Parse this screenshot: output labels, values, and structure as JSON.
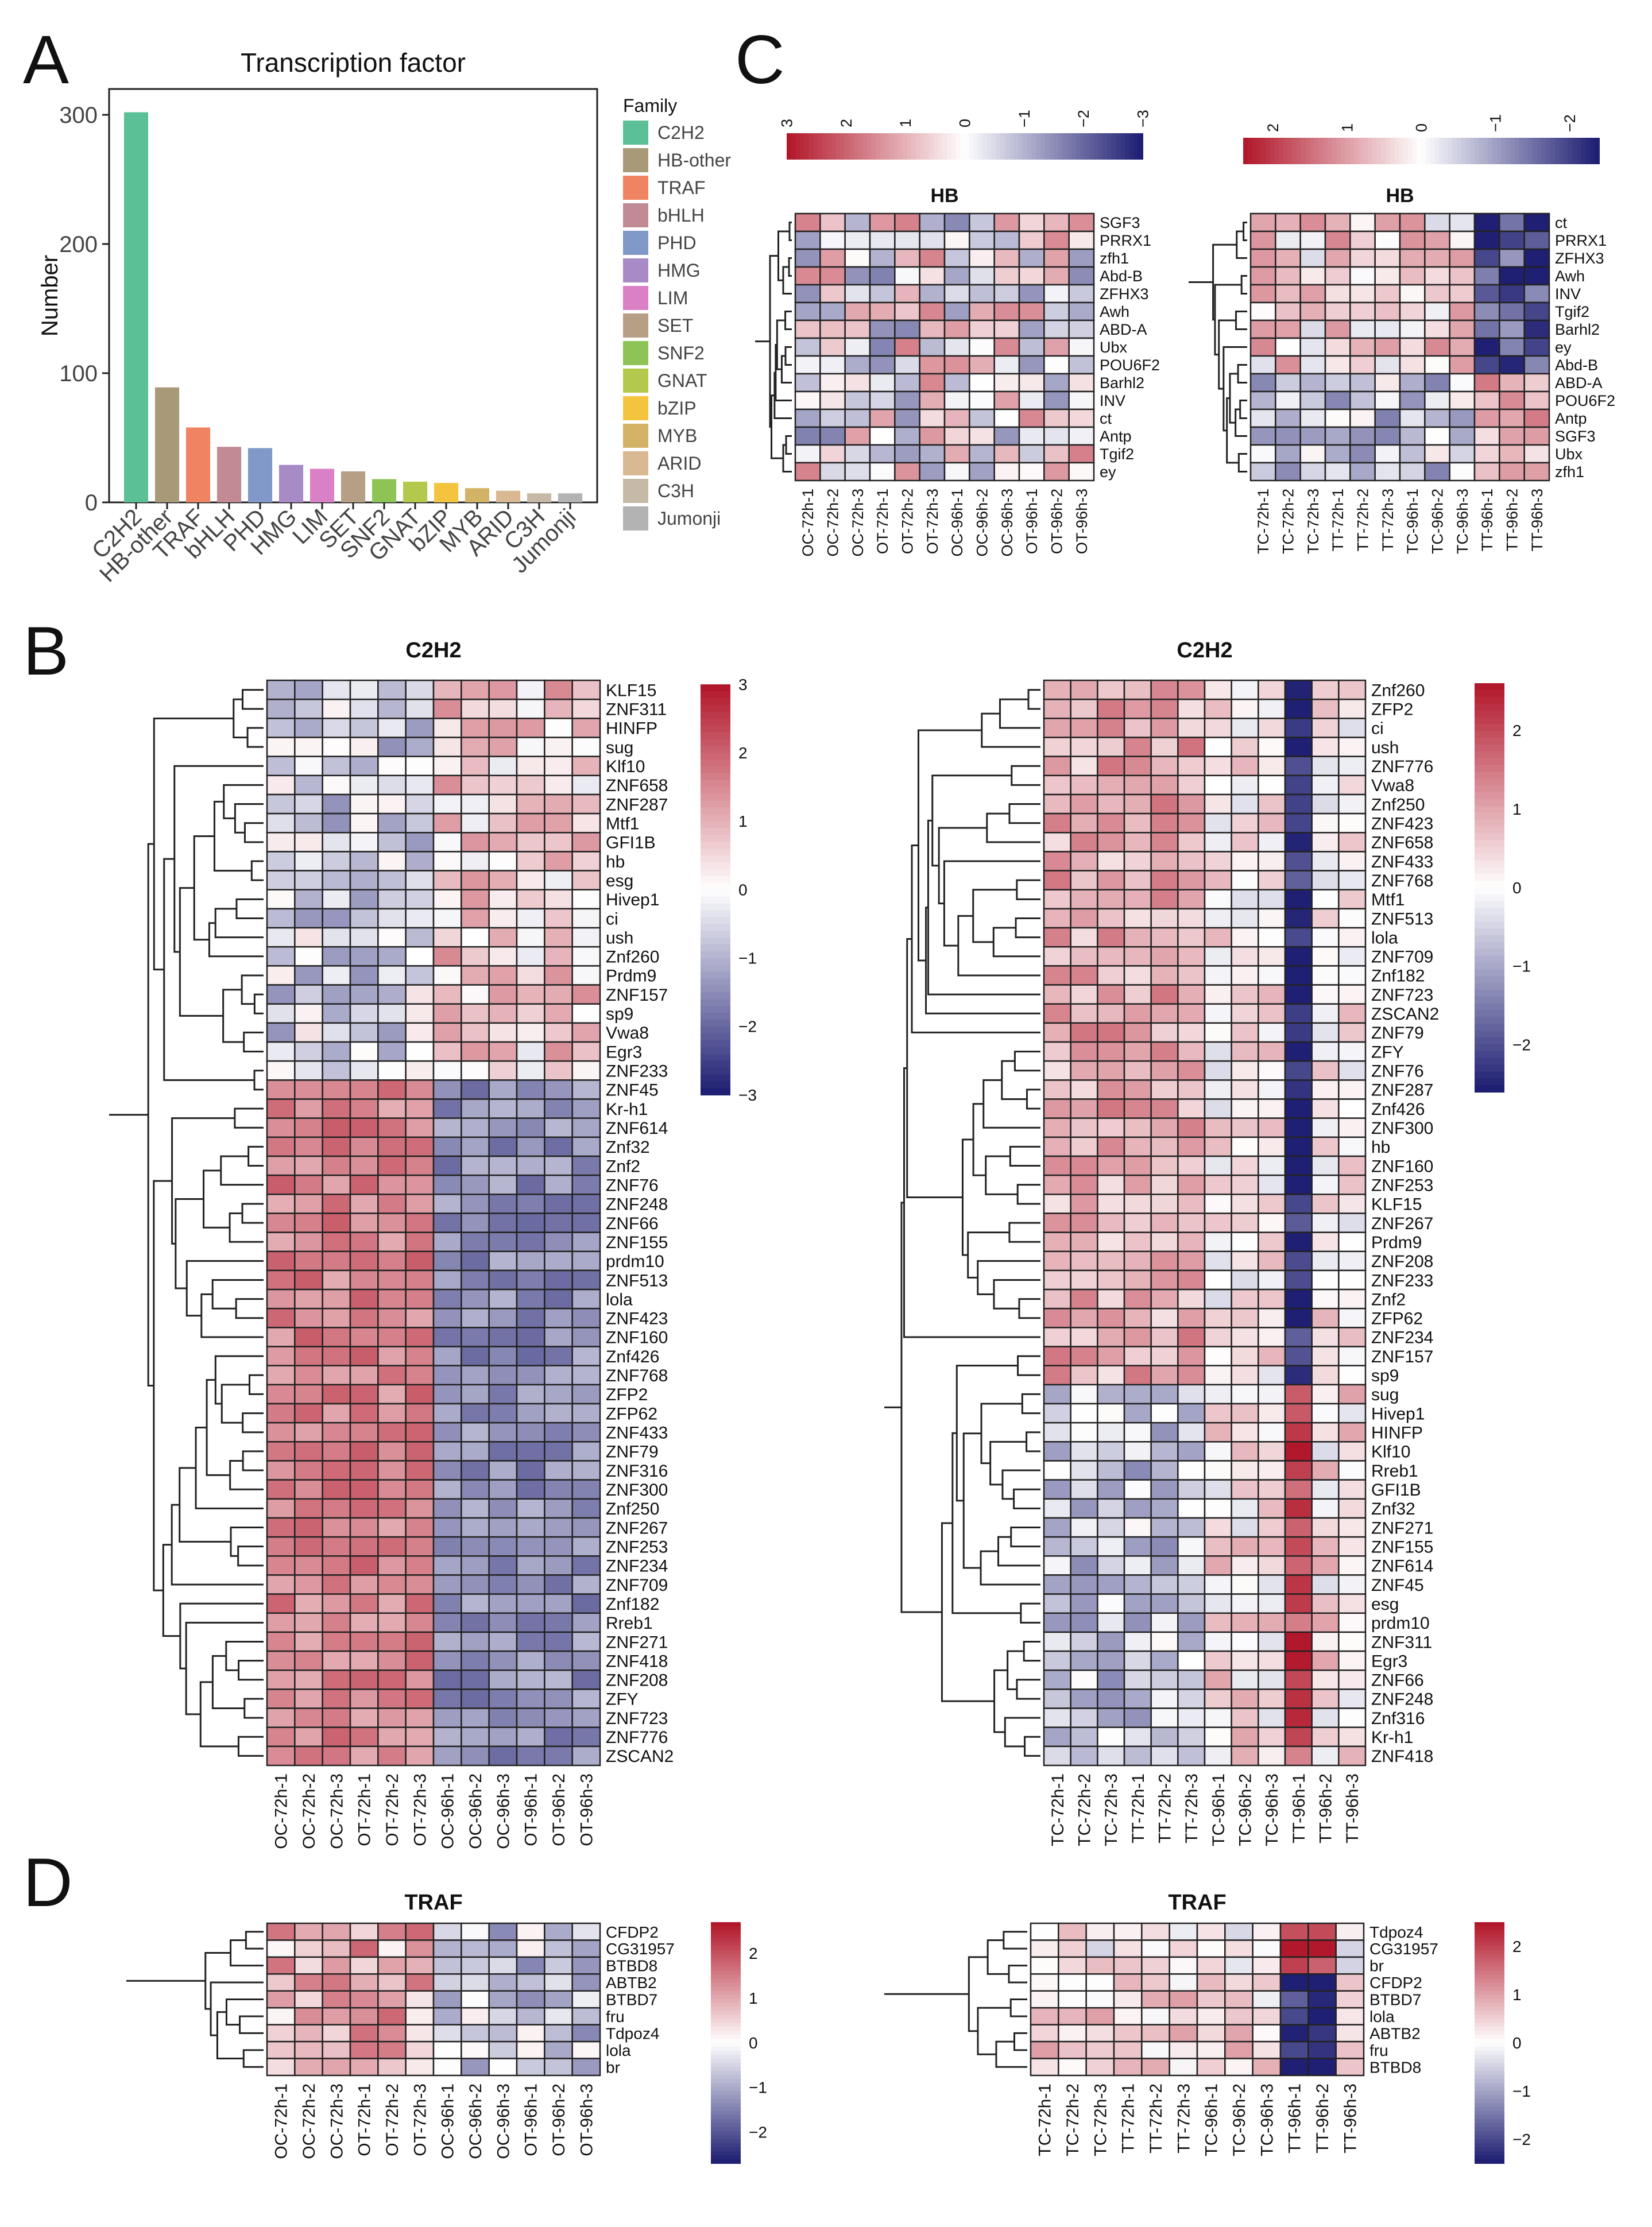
{
  "panels": {
    "A": "A",
    "B": "B",
    "C": "C",
    "D": "D"
  },
  "chart_data": [
    {
      "id": "A",
      "type": "bar",
      "title": "Transcription factor",
      "xlabel": "",
      "ylabel": "Number",
      "ylim": [
        0,
        320
      ],
      "yticks": [
        0,
        100,
        200,
        300
      ],
      "legend_title": "Family",
      "categories": [
        "C2H2",
        "HB-other",
        "TRAF",
        "bHLH",
        "PHD",
        "HMG",
        "LIM",
        "SET",
        "SNF2",
        "GNAT",
        "bZIP",
        "MYB",
        "ARID",
        "C3H",
        "Jumonji"
      ],
      "values": [
        302,
        89,
        58,
        43,
        42,
        29,
        26,
        24,
        18,
        16,
        15,
        11,
        9,
        7,
        7
      ],
      "colors": [
        "#5cc096",
        "#a89a78",
        "#f08462",
        "#c18a94",
        "#8099c9",
        "#a88ac6",
        "#d980c6",
        "#b79f86",
        "#8dc455",
        "#b3c94e",
        "#f5c43e",
        "#d3b466",
        "#d9b894",
        "#c6b9a6",
        "#b3b3b3"
      ]
    },
    {
      "id": "B-left",
      "type": "heatmap",
      "title": "C2H2",
      "columns": [
        "OC-72h-1",
        "OC-72h-2",
        "OC-72h-3",
        "OT-72h-1",
        "OT-72h-2",
        "OT-72h-3",
        "OC-96h-1",
        "OC-96h-2",
        "OC-96h-3",
        "OT-96h-1",
        "OT-96h-2",
        "OT-96h-3"
      ],
      "rows": [
        "KLF15",
        "ZNF311",
        "HINFP",
        "sug",
        "Klf10",
        "ZNF658",
        "ZNF287",
        "Mtf1",
        "GFI1B",
        "hb",
        "esg",
        "Hivep1",
        "ci",
        "ush",
        "Znf260",
        "Prdm9",
        "ZNF157",
        "sp9",
        "Vwa8",
        "Egr3",
        "ZNF233",
        "ZNF45",
        "Kr-h1",
        "ZNF614",
        "Znf32",
        "Znf2",
        "ZNF76",
        "ZNF248",
        "ZNF66",
        "ZNF155",
        "prdm10",
        "ZNF513",
        "lola",
        "ZNF423",
        "ZNF160",
        "Znf426",
        "ZNF768",
        "ZFP2",
        "ZFP62",
        "ZNF433",
        "ZNF79",
        "ZNF316",
        "ZNF300",
        "Znf250",
        "ZNF267",
        "ZNF253",
        "ZNF234",
        "ZNF709",
        "Znf182",
        "Rreb1",
        "ZNF271",
        "ZNF418",
        "ZNF208",
        "ZFY",
        "ZNF723",
        "ZNF776",
        "ZSCAN2"
      ],
      "legend_range": [
        -3,
        3
      ],
      "legend_ticks": [
        "3",
        "2",
        "1",
        "0",
        "−1",
        "−2",
        "−3"
      ]
    },
    {
      "id": "B-right",
      "type": "heatmap",
      "title": "C2H2",
      "columns": [
        "TC-72h-1",
        "TC-72h-2",
        "TC-72h-3",
        "TT-72h-1",
        "TT-72h-2",
        "TT-72h-3",
        "TC-96h-1",
        "TC-96h-2",
        "TC-96h-3",
        "TT-96h-1",
        "TT-96h-2",
        "TT-96h-3"
      ],
      "rows": [
        "Znf260",
        "ZFP2",
        "ci",
        "ush",
        "ZNF776",
        "Vwa8",
        "Znf250",
        "ZNF423",
        "ZNF658",
        "ZNF433",
        "ZNF768",
        "Mtf1",
        "ZNF513",
        "lola",
        "ZNF709",
        "Znf182",
        "ZNF723",
        "ZSCAN2",
        "ZNF79",
        "ZFY",
        "ZNF76",
        "ZNF287",
        "Znf426",
        "ZNF300",
        "hb",
        "ZNF160",
        "ZNF253",
        "KLF15",
        "ZNF267",
        "Prdm9",
        "ZNF208",
        "ZNF233",
        "Znf2",
        "ZFP62",
        "ZNF234",
        "ZNF157",
        "sp9",
        "sug",
        "Hivep1",
        "HINFP",
        "Klf10",
        "Rreb1",
        "GFI1B",
        "Znf32",
        "ZNF271",
        "ZNF155",
        "ZNF614",
        "ZNF45",
        "esg",
        "prdm10",
        "ZNF311",
        "Egr3",
        "ZNF66",
        "ZNF248",
        "Znf316",
        "Kr-h1",
        "ZNF418"
      ],
      "legend_range": [
        -2.6,
        2.6
      ],
      "legend_ticks": [
        "2",
        "1",
        "0",
        "−1",
        "−2"
      ]
    },
    {
      "id": "C-left",
      "type": "heatmap",
      "title": "HB",
      "columns": [
        "OC-72h-1",
        "OC-72h-2",
        "OC-72h-3",
        "OT-72h-1",
        "OT-72h-2",
        "OT-72h-3",
        "OC-96h-1",
        "OC-96h-2",
        "OC-96h-3",
        "OT-96h-1",
        "OT-96h-2",
        "OT-96h-3"
      ],
      "rows": [
        "SGF3",
        "PRRX1",
        "zfh1",
        "Abd-B",
        "ZFHX3",
        "Awh",
        "ABD-A",
        "Ubx",
        "POU6F2",
        "Barhl2",
        "INV",
        "ct",
        "Antp",
        "Tgif2",
        "ey"
      ],
      "legend_range": [
        -3,
        3
      ],
      "legend_ticks": [
        "3",
        "2",
        "1",
        "0",
        "−1",
        "−2",
        "−3"
      ]
    },
    {
      "id": "C-right",
      "type": "heatmap",
      "title": "HB",
      "columns": [
        "TC-72h-1",
        "TC-72h-2",
        "TC-72h-3",
        "TT-72h-1",
        "TT-72h-2",
        "TT-72h-3",
        "TC-96h-1",
        "TC-96h-2",
        "TC-96h-3",
        "TT-96h-1",
        "TT-96h-2",
        "TT-96h-3"
      ],
      "rows": [
        "ct",
        "PRRX1",
        "ZFHX3",
        "Awh",
        "INV",
        "Tgif2",
        "Barhl2",
        "ey",
        "Abd-B",
        "ABD-A",
        "POU6F2",
        "Antp",
        "SGF3",
        "Ubx",
        "zfh1"
      ],
      "legend_range": [
        -2.4,
        2.4
      ],
      "legend_ticks": [
        "2",
        "1",
        "0",
        "−1",
        "−2"
      ]
    },
    {
      "id": "D-left",
      "type": "heatmap",
      "title": "TRAF",
      "columns": [
        "OC-72h-1",
        "OC-72h-2",
        "OC-72h-3",
        "OT-72h-1",
        "OT-72h-2",
        "OT-72h-3",
        "OC-96h-1",
        "OC-96h-2",
        "OC-96h-3",
        "OT-96h-1",
        "OT-96h-2",
        "OT-96h-3"
      ],
      "rows": [
        "CFDP2",
        "CG31957",
        "BTBD8",
        "ABTB2",
        "BTBD7",
        "fru",
        "Tdpoz4",
        "lola",
        "br"
      ],
      "legend_range": [
        -2.7,
        2.7
      ],
      "legend_ticks": [
        "2",
        "1",
        "0",
        "−1",
        "−2"
      ]
    },
    {
      "id": "D-right",
      "type": "heatmap",
      "title": "TRAF",
      "columns": [
        "TC-72h-1",
        "TC-72h-2",
        "TC-72h-3",
        "TT-72h-1",
        "TT-72h-2",
        "TT-72h-3",
        "TC-96h-1",
        "TC-96h-2",
        "TC-96h-3",
        "TT-96h-1",
        "TT-96h-2",
        "TT-96h-3"
      ],
      "rows": [
        "Tdpoz4",
        "CG31957",
        "br",
        "CFDP2",
        "BTBD7",
        "lola",
        "ABTB2",
        "fru",
        "BTBD8"
      ],
      "legend_range": [
        -2.5,
        2.5
      ],
      "legend_ticks": [
        "2",
        "1",
        "0",
        "−1",
        "−2"
      ]
    }
  ]
}
